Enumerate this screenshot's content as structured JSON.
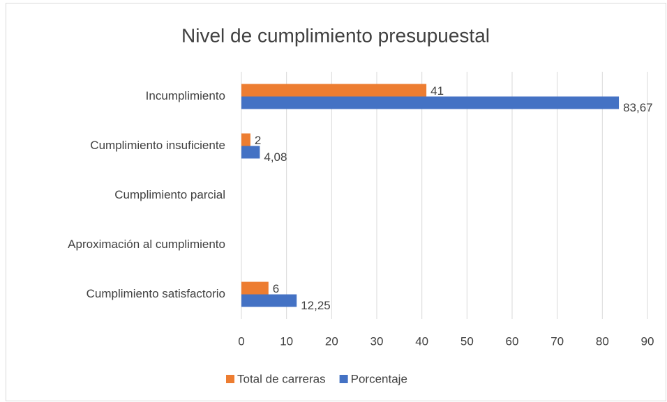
{
  "chart_data": {
    "type": "hbar",
    "title": "Nivel de cumplimiento presupuestal",
    "categories": [
      "Incumplimiento",
      "Cumplimiento insuficiente",
      "Cumplimiento parcial",
      "Aproximación al cumplimiento",
      "Cumplimiento satisfactorio"
    ],
    "series": [
      {
        "name": "Total de carreras",
        "color": "#ed7d31",
        "values": [
          41,
          2,
          null,
          null,
          6
        ]
      },
      {
        "name": "Porcentaje",
        "color": "#4472c4",
        "values": [
          83.67,
          4.08,
          null,
          null,
          12.25
        ],
        "value_labels": [
          "83,67",
          "4,08",
          null,
          null,
          "12,25"
        ]
      }
    ],
    "xlim": [
      0,
      90
    ],
    "xticks": [
      0,
      10,
      20,
      30,
      40,
      50,
      60,
      70,
      80,
      90
    ],
    "grid": true,
    "legend": "bottom"
  }
}
